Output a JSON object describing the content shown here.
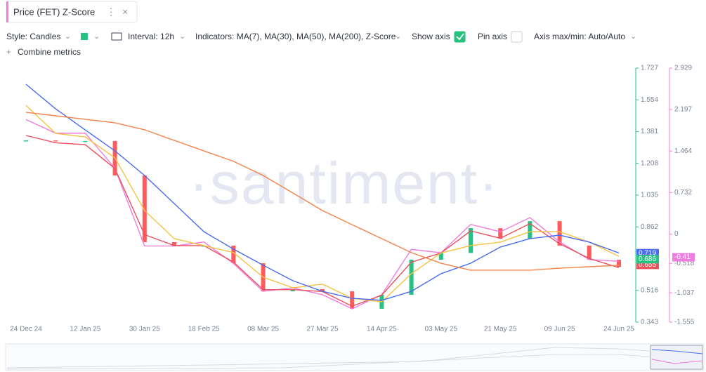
{
  "header": {
    "title": "Price (FET) Z-Score"
  },
  "toolbar": {
    "style": "Style: Candles",
    "style_color": "#26c281",
    "interval": "Interval: 12h",
    "indicators": "Indicators: MA(7), MA(30), MA(50), MA(200), Z-Score",
    "show_axis": "Show axis",
    "show_axis_checked": true,
    "pin_axis": "Pin axis",
    "pin_axis_checked": false,
    "axis_minmax": "Axis max/min: Auto/Auto",
    "combine": "Combine metrics"
  },
  "chart_data": {
    "type": "line",
    "watermark": "·santiment·",
    "categories": [
      "24 Dec 24",
      null,
      "12 Jan 25",
      null,
      "30 Jan 25",
      null,
      "18 Feb 25",
      null,
      "08 Mar 25",
      null,
      "27 Mar 25",
      null,
      "14 Apr 25",
      null,
      "03 May 25",
      null,
      "21 May 25",
      null,
      "09 Jun 25",
      null,
      "24 Jun 25"
    ],
    "ylim": [
      0.343,
      1.727
    ],
    "yticks": [
      1.727,
      1.554,
      1.381,
      1.208,
      1.035,
      0.862,
      0.516,
      0.343
    ],
    "y2lim": [
      -1.555,
      2.929
    ],
    "y2ticks": [
      2.929,
      2.197,
      1.464,
      0.732,
      0,
      -0.518,
      -1.037,
      -1.555
    ],
    "axis_color": "#26c281",
    "y2_axis_color": "#f07ce0",
    "price": {
      "values": [
        1.333,
        1.33,
        1.33,
        1.142,
        0.779,
        0.76,
        0.76,
        0.664,
        0.511,
        0.523,
        0.511,
        0.416,
        0.492,
        0.683,
        0.72,
        0.855,
        0.798,
        0.893,
        0.76,
        0.683,
        0.645
      ],
      "up_color": "#26c281",
      "down_color": "#ff5b5b",
      "last_label": 0.686
    },
    "series": [
      {
        "color": "#f07ce0",
        "axis": "y2",
        "values": [
          2.02,
          1.78,
          1.78,
          1.16,
          -0.21,
          -0.21,
          -0.14,
          -0.52,
          -1.01,
          -0.95,
          -1.07,
          -1.32,
          -1.07,
          -0.27,
          -0.33,
          0.17,
          0.04,
          0.29,
          -0.14,
          -0.45,
          -0.48
        ],
        "last_label": -0.41
      },
      {
        "color": "#e8505b",
        "values": [
          1.36,
          1.32,
          1.31,
          1.18,
          0.82,
          0.76,
          0.76,
          0.67,
          0.52,
          0.52,
          0.51,
          0.43,
          0.49,
          0.67,
          0.72,
          0.84,
          0.8,
          0.88,
          0.77,
          0.69,
          0.64
        ],
        "last_label": 0.655
      },
      {
        "color": "#f5c242",
        "values": [
          1.524,
          1.371,
          1.352,
          1.238,
          0.951,
          0.798,
          0.76,
          0.722,
          0.588,
          0.53,
          0.55,
          0.473,
          0.454,
          0.607,
          0.72,
          0.76,
          0.779,
          0.836,
          0.836,
          0.779,
          0.702
        ]
      },
      {
        "color": "#4a6cf0",
        "values": [
          1.639,
          1.505,
          1.39,
          1.276,
          1.142,
          0.989,
          0.836,
          0.741,
          0.653,
          0.569,
          0.511,
          0.473,
          0.462,
          0.511,
          0.607,
          0.664,
          0.752,
          0.798,
          0.817,
          0.779,
          0.72
        ],
        "last_label": 0.719
      },
      {
        "color": "#f5834b",
        "values": [
          1.486,
          1.467,
          1.448,
          1.429,
          1.391,
          1.333,
          1.276,
          1.219,
          1.142,
          1.047,
          0.951,
          0.874,
          0.798,
          0.722,
          0.664,
          0.626,
          0.626,
          0.626,
          0.637,
          0.645,
          0.653
        ]
      }
    ]
  }
}
